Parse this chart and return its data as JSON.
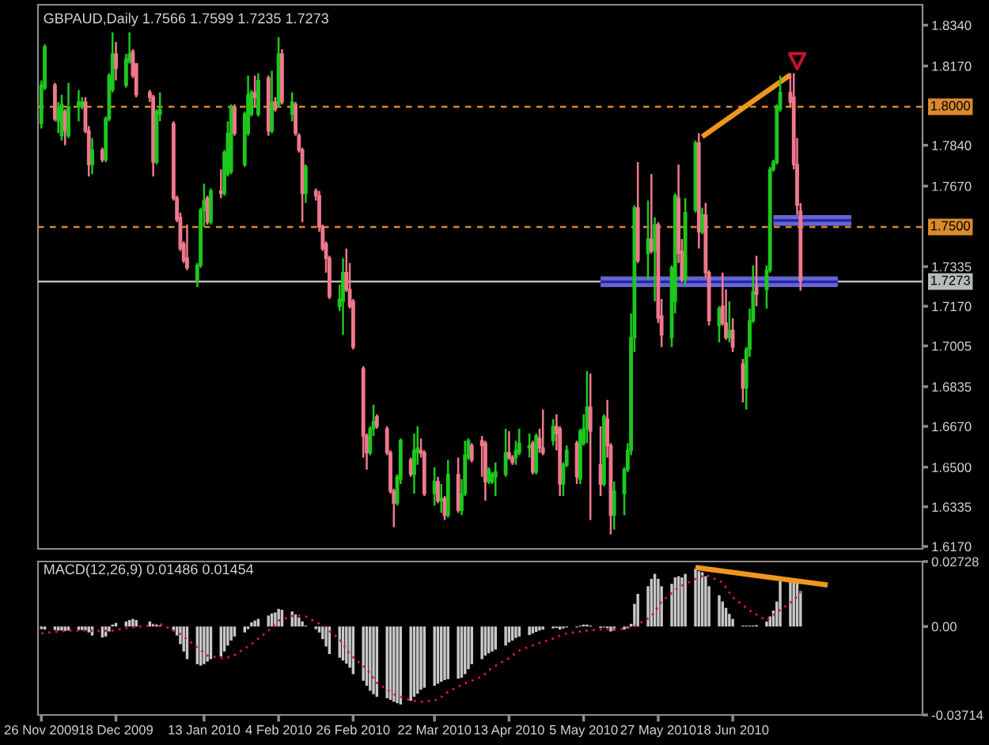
{
  "chart_data": [
    {
      "type": "candlestick",
      "title": "GBPAUD,Daily 1.7566 1.7599 1.7235 1.7273",
      "x": [
        "2009-11-26",
        "2009-11-27",
        "2009-11-30",
        "2009-12-01",
        "2009-12-02",
        "2009-12-03",
        "2009-12-04",
        "2009-12-07",
        "2009-12-08",
        "2009-12-09",
        "2009-12-10",
        "2009-12-11",
        "2009-12-14",
        "2009-12-15",
        "2009-12-16",
        "2009-12-17",
        "2009-12-18",
        "2009-12-21",
        "2009-12-22",
        "2009-12-23",
        "2009-12-24",
        "2009-12-28",
        "2009-12-29",
        "2009-12-30",
        "2009-12-31",
        "2010-01-04",
        "2010-01-05",
        "2010-01-06",
        "2010-01-07",
        "2010-01-08",
        "2010-01-11",
        "2010-01-12",
        "2010-01-13",
        "2010-01-14",
        "2010-01-15",
        "2010-01-18",
        "2010-01-19",
        "2010-01-20",
        "2010-01-21",
        "2010-01-22",
        "2010-01-25",
        "2010-01-26",
        "2010-01-27",
        "2010-01-28",
        "2010-01-29",
        "2010-02-01",
        "2010-02-02",
        "2010-02-03",
        "2010-02-04",
        "2010-02-05",
        "2010-02-08",
        "2010-02-09",
        "2010-02-10",
        "2010-02-11",
        "2010-02-12",
        "2010-02-15",
        "2010-02-16",
        "2010-02-17",
        "2010-02-18",
        "2010-02-19",
        "2010-02-22",
        "2010-02-23",
        "2010-02-24",
        "2010-02-25",
        "2010-02-26",
        "2010-03-01",
        "2010-03-02",
        "2010-03-03",
        "2010-03-04",
        "2010-03-05",
        "2010-03-08",
        "2010-03-09",
        "2010-03-10",
        "2010-03-11",
        "2010-03-12",
        "2010-03-15",
        "2010-03-16",
        "2010-03-17",
        "2010-03-18",
        "2010-03-19",
        "2010-03-22",
        "2010-03-23",
        "2010-03-24",
        "2010-03-25",
        "2010-03-26",
        "2010-03-29",
        "2010-03-30",
        "2010-03-31",
        "2010-04-01",
        "2010-04-02",
        "2010-04-05",
        "2010-04-06",
        "2010-04-07",
        "2010-04-08",
        "2010-04-09",
        "2010-04-12",
        "2010-04-13",
        "2010-04-14",
        "2010-04-15",
        "2010-04-16",
        "2010-04-19",
        "2010-04-20",
        "2010-04-21",
        "2010-04-22",
        "2010-04-23",
        "2010-04-26",
        "2010-04-27",
        "2010-04-28",
        "2010-04-29",
        "2010-04-30",
        "2010-05-03",
        "2010-05-04",
        "2010-05-05",
        "2010-05-06",
        "2010-05-07",
        "2010-05-10",
        "2010-05-11",
        "2010-05-12",
        "2010-05-13",
        "2010-05-14",
        "2010-05-17",
        "2010-05-18",
        "2010-05-19",
        "2010-05-20",
        "2010-05-21",
        "2010-05-24",
        "2010-05-25",
        "2010-05-26",
        "2010-05-27",
        "2010-05-28",
        "2010-05-31",
        "2010-06-01",
        "2010-06-02",
        "2010-06-03",
        "2010-06-04",
        "2010-06-07",
        "2010-06-08",
        "2010-06-09",
        "2010-06-10",
        "2010-06-11",
        "2010-06-14",
        "2010-06-15",
        "2010-06-16",
        "2010-06-17",
        "2010-06-18",
        "2010-06-21",
        "2010-06-22",
        "2010-06-23",
        "2010-06-24",
        "2010-06-25",
        "2010-06-28",
        "2010-06-29",
        "2010-06-30",
        "2010-07-01",
        "2010-07-02",
        "2010-07-05",
        "2010-07-06",
        "2010-07-07",
        "2010-07-08"
      ],
      "ohlc": [
        [
          1.793,
          1.811,
          1.791,
          1.809
        ],
        [
          1.808,
          1.826,
          1.807,
          1.825
        ],
        [
          1.809,
          1.81,
          1.794,
          1.795
        ],
        [
          1.794,
          1.802,
          1.789,
          1.8
        ],
        [
          1.788,
          1.805,
          1.786,
          1.801
        ],
        [
          1.798,
          1.799,
          1.784,
          1.79
        ],
        [
          1.788,
          1.81,
          1.787,
          1.8
        ],
        [
          1.8,
          1.807,
          1.794,
          1.802
        ],
        [
          1.8,
          1.804,
          1.799,
          1.802
        ],
        [
          1.802,
          1.804,
          1.789,
          1.79
        ],
        [
          1.79,
          1.792,
          1.771,
          1.776
        ],
        [
          1.776,
          1.787,
          1.772,
          1.782
        ],
        [
          1.782,
          1.783,
          1.777,
          1.778
        ],
        [
          1.778,
          1.796,
          1.777,
          1.795
        ],
        [
          1.795,
          1.814,
          1.794,
          1.813
        ],
        [
          1.807,
          1.831,
          1.806,
          1.822
        ],
        [
          1.822,
          1.827,
          1.811,
          1.816
        ],
        [
          1.809,
          1.822,
          1.808,
          1.82
        ],
        [
          1.819,
          1.831,
          1.818,
          1.822
        ],
        [
          1.823,
          1.824,
          1.812,
          1.813
        ],
        [
          1.818,
          1.818,
          1.804,
          1.805
        ],
        [
          1.806,
          1.807,
          1.802,
          1.804
        ],
        [
          1.804,
          1.805,
          1.771,
          1.777
        ],
        [
          1.777,
          1.799,
          1.776,
          1.798
        ],
        [
          1.797,
          1.806,
          1.794,
          1.799
        ],
        [
          1.793,
          1.794,
          1.761,
          1.762
        ],
        [
          1.762,
          1.763,
          1.752,
          1.753
        ],
        [
          1.754,
          1.756,
          1.74,
          1.741
        ],
        [
          1.743,
          1.744,
          1.735,
          1.736
        ],
        [
          1.737,
          1.751,
          1.732,
          1.733
        ],
        [
          1.728,
          1.735,
          1.725,
          1.734
        ],
        [
          1.734,
          1.758,
          1.733,
          1.757
        ],
        [
          1.757,
          1.768,
          1.75,
          1.761
        ],
        [
          1.762,
          1.763,
          1.751,
          1.752
        ],
        [
          1.752,
          1.766,
          1.751,
          1.765
        ],
        [
          1.765,
          1.774,
          1.762,
          1.764
        ],
        [
          1.764,
          1.782,
          1.763,
          1.781
        ],
        [
          1.772,
          1.794,
          1.771,
          1.789
        ],
        [
          1.773,
          1.801,
          1.772,
          1.8
        ],
        [
          1.8,
          1.801,
          1.788,
          1.789
        ],
        [
          1.776,
          1.798,
          1.775,
          1.797
        ],
        [
          1.789,
          1.813,
          1.788,
          1.805
        ],
        [
          1.797,
          1.807,
          1.796,
          1.806
        ],
        [
          1.806,
          1.813,
          1.8,
          1.804
        ],
        [
          1.797,
          1.814,
          1.796,
          1.811
        ],
        [
          1.812,
          1.813,
          1.788,
          1.79
        ],
        [
          1.79,
          1.815,
          1.789,
          1.802
        ],
        [
          1.802,
          1.804,
          1.798,
          1.799
        ],
        [
          1.801,
          1.829,
          1.8,
          1.822
        ],
        [
          1.822,
          1.824,
          1.801,
          1.802
        ],
        [
          1.797,
          1.806,
          1.794,
          1.802
        ],
        [
          1.801,
          1.802,
          1.788,
          1.789
        ],
        [
          1.788,
          1.789,
          1.781,
          1.782
        ],
        [
          1.782,
          1.783,
          1.752,
          1.764
        ],
        [
          1.764,
          1.776,
          1.76,
          1.775
        ],
        [
          1.765,
          1.766,
          1.761,
          1.763
        ],
        [
          1.763,
          1.765,
          1.748,
          1.75
        ],
        [
          1.75,
          1.751,
          1.74,
          1.741
        ],
        [
          1.743,
          1.744,
          1.731,
          1.737
        ],
        [
          1.737,
          1.738,
          1.72,
          1.721
        ],
        [
          1.717,
          1.726,
          1.715,
          1.72
        ],
        [
          1.719,
          1.737,
          1.705,
          1.731
        ],
        [
          1.731,
          1.741,
          1.723,
          1.724
        ],
        [
          1.724,
          1.735,
          1.716,
          1.717
        ],
        [
          1.719,
          1.72,
          1.699,
          1.7
        ],
        [
          1.691,
          1.692,
          1.654,
          1.663
        ],
        [
          1.663,
          1.664,
          1.649,
          1.656
        ],
        [
          1.656,
          1.667,
          1.655,
          1.666
        ],
        [
          1.666,
          1.676,
          1.663,
          1.669
        ],
        [
          1.671,
          1.672,
          1.666,
          1.667
        ],
        [
          1.666,
          1.667,
          1.655,
          1.656
        ],
        [
          1.656,
          1.657,
          1.639,
          1.64
        ],
        [
          1.64,
          1.641,
          1.625,
          1.635
        ],
        [
          1.635,
          1.647,
          1.634,
          1.646
        ],
        [
          1.645,
          1.662,
          1.643,
          1.661
        ],
        [
          1.653,
          1.654,
          1.646,
          1.647
        ],
        [
          1.647,
          1.664,
          1.639,
          1.657
        ],
        [
          1.656,
          1.667,
          1.651,
          1.658
        ],
        [
          1.657,
          1.662,
          1.654,
          1.656
        ],
        [
          1.656,
          1.657,
          1.638,
          1.639
        ],
        [
          1.639,
          1.65,
          1.634,
          1.644
        ],
        [
          1.644,
          1.646,
          1.635,
          1.636
        ],
        [
          1.636,
          1.643,
          1.631,
          1.637
        ],
        [
          1.637,
          1.638,
          1.628,
          1.63
        ],
        [
          1.63,
          1.653,
          1.629,
          1.647
        ],
        [
          1.647,
          1.654,
          1.631,
          1.632
        ],
        [
          1.632,
          1.645,
          1.63,
          1.639
        ],
        [
          1.639,
          1.661,
          1.638,
          1.655
        ],
        [
          1.654,
          1.662,
          1.653,
          1.661
        ],
        [
          1.659,
          1.66,
          1.652,
          1.653
        ],
        [
          1.661,
          1.663,
          1.646,
          1.659
        ],
        [
          1.66,
          1.661,
          1.636,
          1.644
        ],
        [
          1.644,
          1.65,
          1.643,
          1.649
        ],
        [
          1.644,
          1.648,
          1.643,
          1.647
        ],
        [
          1.646,
          1.652,
          1.638,
          1.648
        ],
        [
          1.647,
          1.666,
          1.646,
          1.656
        ],
        [
          1.656,
          1.665,
          1.653,
          1.654
        ],
        [
          1.654,
          1.655,
          1.651,
          1.652
        ],
        [
          1.654,
          1.661,
          1.651,
          1.657
        ],
        [
          1.656,
          1.666,
          1.655,
          1.66
        ],
        [
          1.658,
          1.664,
          1.654,
          1.659
        ],
        [
          1.66,
          1.661,
          1.647,
          1.648
        ],
        [
          1.648,
          1.664,
          1.647,
          1.663
        ],
        [
          1.662,
          1.666,
          1.656,
          1.658
        ],
        [
          1.658,
          1.674,
          1.655,
          1.656
        ],
        [
          1.661,
          1.67,
          1.659,
          1.667
        ],
        [
          1.667,
          1.672,
          1.657,
          1.664
        ],
        [
          1.666,
          1.667,
          1.638,
          1.643
        ],
        [
          1.643,
          1.652,
          1.638,
          1.651
        ],
        [
          1.651,
          1.659,
          1.65,
          1.657
        ],
        [
          1.66,
          1.661,
          1.643,
          1.646
        ],
        [
          1.645,
          1.666,
          1.643,
          1.665
        ],
        [
          1.66,
          1.672,
          1.659,
          1.666
        ],
        [
          1.666,
          1.69,
          1.66,
          1.675
        ],
        [
          1.675,
          1.689,
          1.628,
          1.665
        ],
        [
          1.651,
          1.667,
          1.638,
          1.643
        ],
        [
          1.643,
          1.672,
          1.642,
          1.671
        ],
        [
          1.67,
          1.678,
          1.654,
          1.659
        ],
        [
          1.659,
          1.66,
          1.622,
          1.63
        ],
        [
          1.63,
          1.644,
          1.624,
          1.64
        ],
        [
          1.639,
          1.65,
          1.63,
          1.649
        ],
        [
          1.649,
          1.66,
          1.648,
          1.657
        ],
        [
          1.657,
          1.714,
          1.655,
          1.704
        ],
        [
          1.704,
          1.759,
          1.698,
          1.758
        ],
        [
          1.758,
          1.777,
          1.735,
          1.736
        ],
        [
          1.739,
          1.761,
          1.728,
          1.745
        ],
        [
          1.745,
          1.772,
          1.739,
          1.74
        ],
        [
          1.74,
          1.754,
          1.719,
          1.751
        ],
        [
          1.751,
          1.752,
          1.71,
          1.712
        ],
        [
          1.713,
          1.72,
          1.7,
          1.705
        ],
        [
          1.704,
          1.734,
          1.7,
          1.733
        ],
        [
          1.719,
          1.764,
          1.714,
          1.763
        ],
        [
          1.762,
          1.776,
          1.735,
          1.739
        ],
        [
          1.74,
          1.745,
          1.727,
          1.728
        ],
        [
          1.728,
          1.762,
          1.726,
          1.756
        ],
        [
          1.757,
          1.786,
          1.756,
          1.785
        ],
        [
          1.785,
          1.789,
          1.741,
          1.748
        ],
        [
          1.748,
          1.758,
          1.747,
          1.755
        ],
        [
          1.755,
          1.76,
          1.729,
          1.731
        ],
        [
          1.731,
          1.732,
          1.709,
          1.711
        ],
        [
          1.709,
          1.717,
          1.702,
          1.716
        ],
        [
          1.717,
          1.731,
          1.709,
          1.71
        ],
        [
          1.71,
          1.724,
          1.703,
          1.704
        ],
        [
          1.704,
          1.719,
          1.702,
          1.707
        ],
        [
          1.707,
          1.712,
          1.698,
          1.7
        ],
        [
          1.693,
          1.695,
          1.677,
          1.683
        ],
        [
          1.683,
          1.7,
          1.674,
          1.699
        ],
        [
          1.699,
          1.716,
          1.696,
          1.711
        ],
        [
          1.711,
          1.734,
          1.71,
          1.723
        ],
        [
          1.725,
          1.738,
          1.717,
          1.722
        ],
        [
          1.724,
          1.734,
          1.716,
          1.732
        ],
        [
          1.732,
          1.775,
          1.731,
          1.774
        ],
        [
          1.774,
          1.778,
          1.773,
          1.777
        ],
        [
          1.777,
          1.801,
          1.776,
          1.8
        ],
        [
          1.799,
          1.813,
          1.798,
          1.806
        ],
        [
          1.806,
          1.814,
          1.8,
          1.802
        ],
        [
          1.804,
          1.814,
          1.774,
          1.776
        ],
        [
          1.776,
          1.787,
          1.755,
          1.759
        ],
        [
          1.7566,
          1.7599,
          1.7235,
          1.7273
        ]
      ],
      "colors": [
        "#1ec81e",
        "#1ec81e",
        "#f0788c",
        "#1ec81e",
        "#1ec81e",
        "#f0788c",
        "#1ec81e",
        "#1ec81e",
        "#1ec81e",
        "#f0788c",
        "#f0788c",
        "#1ec81e",
        "#f0788c",
        "#1ec81e",
        "#1ec81e",
        "#1ec81e",
        "#f0788c",
        "#1ec81e",
        "#1ec81e",
        "#f0788c",
        "#f0788c",
        "#f0788c",
        "#f0788c",
        "#1ec81e",
        "#1ec81e",
        "#f0788c",
        "#f0788c",
        "#f0788c",
        "#f0788c",
        "#f0788c",
        "#1ec81e",
        "#1ec81e",
        "#1ec81e",
        "#f0788c",
        "#1ec81e",
        "#f0788c",
        "#1ec81e",
        "#1ec81e",
        "#1ec81e",
        "#f0788c",
        "#1ec81e",
        "#1ec81e",
        "#1ec81e",
        "#f0788c",
        "#1ec81e",
        "#f0788c",
        "#1ec81e",
        "#f0788c",
        "#1ec81e",
        "#f0788c",
        "#1ec81e",
        "#f0788c",
        "#f0788c",
        "#f0788c",
        "#1ec81e",
        "#f0788c",
        "#f0788c",
        "#f0788c",
        "#f0788c",
        "#f0788c",
        "#1ec81e",
        "#1ec81e",
        "#f0788c",
        "#f0788c",
        "#f0788c",
        "#f0788c",
        "#f0788c",
        "#1ec81e",
        "#1ec81e",
        "#f0788c",
        "#f0788c",
        "#f0788c",
        "#f0788c",
        "#1ec81e",
        "#1ec81e",
        "#f0788c",
        "#1ec81e",
        "#1ec81e",
        "#f0788c",
        "#f0788c",
        "#1ec81e",
        "#f0788c",
        "#1ec81e",
        "#f0788c",
        "#1ec81e",
        "#f0788c",
        "#1ec81e",
        "#1ec81e",
        "#1ec81e",
        "#f0788c",
        "#f0788c",
        "#f0788c",
        "#1ec81e",
        "#1ec81e",
        "#1ec81e",
        "#1ec81e",
        "#f0788c",
        "#f0788c",
        "#1ec81e",
        "#1ec81e",
        "#1ec81e",
        "#f0788c",
        "#1ec81e",
        "#f0788c",
        "#f0788c",
        "#1ec81e",
        "#f0788c",
        "#f0788c",
        "#1ec81e",
        "#1ec81e",
        "#f0788c",
        "#1ec81e",
        "#1ec81e",
        "#1ec81e",
        "#f0788c",
        "#f0788c",
        "#1ec81e",
        "#f0788c",
        "#f0788c",
        "#1ec81e",
        "#1ec81e",
        "#1ec81e",
        "#1ec81e",
        "#1ec81e",
        "#f0788c",
        "#1ec81e",
        "#f0788c",
        "#1ec81e",
        "#f0788c",
        "#f0788c",
        "#1ec81e",
        "#1ec81e",
        "#f0788c",
        "#f0788c",
        "#1ec81e",
        "#1ec81e",
        "#f0788c",
        "#1ec81e",
        "#f0788c",
        "#f0788c",
        "#1ec81e",
        "#f0788c",
        "#f0788c",
        "#1ec81e",
        "#f0788c",
        "#f0788c",
        "#1ec81e",
        "#1ec81e",
        "#1ec81e",
        "#f0788c",
        "#1ec81e",
        "#1ec81e",
        "#1ec81e",
        "#1ec81e",
        "#1ec81e",
        "#f0788c",
        "#f0788c",
        "#f0788c",
        "#f0788c"
      ],
      "xlim": [
        "2009-11-25",
        "2010-08-13"
      ],
      "ylim": [
        1.616,
        1.8425
      ],
      "yticks": [
        {
          "value": 1.834,
          "label": "1.8340"
        },
        {
          "value": 1.817,
          "label": "1.8170"
        },
        {
          "value": 1.784,
          "label": "1.7840"
        },
        {
          "value": 1.767,
          "label": "1.7670"
        },
        {
          "value": 1.7335,
          "label": "1.7335"
        },
        {
          "value": 1.717,
          "label": "1.7170"
        },
        {
          "value": 1.7005,
          "label": "1.7005"
        },
        {
          "value": 1.6835,
          "label": "1.6835"
        },
        {
          "value": 1.667,
          "label": "1.6670"
        },
        {
          "value": 1.65,
          "label": "1.6500"
        },
        {
          "value": 1.6335,
          "label": "1.6335"
        },
        {
          "value": 1.617,
          "label": "1.6170"
        }
      ],
      "tick_labels": "y",
      "ref_lines": [
        {
          "axis": "y",
          "value": 1.8,
          "label": "1.8000",
          "color": "#d98a2a",
          "line_style": "dashed"
        },
        {
          "axis": "y",
          "value": 1.75,
          "label": "1.7500",
          "color": "#d98a2a",
          "line_style": "dashed"
        },
        {
          "axis": "y",
          "value": 1.7273,
          "label": "1.7273",
          "color": "#b4bcbc",
          "line_style": "solid"
        }
      ],
      "series": [
        {
          "type": "line",
          "color": "#2424b4",
          "x": [
            "2010-05-10",
            "2010-07-19"
          ],
          "values": [
            1.7272,
            1.7272
          ],
          "lower": [
            1.725,
            1.725
          ],
          "upper": [
            1.7294,
            1.7294
          ]
        },
        {
          "type": "line",
          "color": "#2424b4",
          "x": [
            "2010-06-30",
            "2010-07-23"
          ],
          "values": [
            1.7527,
            1.7527
          ],
          "lower": [
            1.7505,
            1.7505
          ],
          "upper": [
            1.7549,
            1.7549
          ]
        },
        {
          "type": "line",
          "color": "#f0961e",
          "line_style": "solid",
          "x": [
            "2010-06-09",
            "2010-07-05"
          ],
          "values": [
            1.7876,
            1.8133
          ]
        },
        {
          "type": "scatter",
          "color": "#c8142d",
          "marker": "triangle",
          "x": [
            "2010-07-07"
          ],
          "values": [
            1.819
          ]
        }
      ]
    },
    {
      "type": "bar",
      "title": "MACD(12,26,9) 0.01486 0.01454",
      "x": [
        "2009-11-26",
        "2009-11-27",
        "2009-11-30",
        "2009-12-01",
        "2009-12-02",
        "2009-12-03",
        "2009-12-04",
        "2009-12-07",
        "2009-12-08",
        "2009-12-09",
        "2009-12-10",
        "2009-12-11",
        "2009-12-14",
        "2009-12-15",
        "2009-12-16",
        "2009-12-17",
        "2009-12-18",
        "2009-12-21",
        "2009-12-22",
        "2009-12-23",
        "2009-12-24",
        "2009-12-28",
        "2009-12-29",
        "2009-12-30",
        "2009-12-31",
        "2010-01-04",
        "2010-01-05",
        "2010-01-06",
        "2010-01-07",
        "2010-01-08",
        "2010-01-11",
        "2010-01-12",
        "2010-01-13",
        "2010-01-14",
        "2010-01-15",
        "2010-01-18",
        "2010-01-19",
        "2010-01-20",
        "2010-01-21",
        "2010-01-22",
        "2010-01-25",
        "2010-01-26",
        "2010-01-27",
        "2010-01-28",
        "2010-01-29",
        "2010-02-01",
        "2010-02-02",
        "2010-02-03",
        "2010-02-04",
        "2010-02-05",
        "2010-02-08",
        "2010-02-09",
        "2010-02-10",
        "2010-02-11",
        "2010-02-12",
        "2010-02-15",
        "2010-02-16",
        "2010-02-17",
        "2010-02-18",
        "2010-02-19",
        "2010-02-22",
        "2010-02-23",
        "2010-02-24",
        "2010-02-25",
        "2010-02-26",
        "2010-03-01",
        "2010-03-02",
        "2010-03-03",
        "2010-03-04",
        "2010-03-05",
        "2010-03-08",
        "2010-03-09",
        "2010-03-10",
        "2010-03-11",
        "2010-03-12",
        "2010-03-15",
        "2010-03-16",
        "2010-03-17",
        "2010-03-18",
        "2010-03-19",
        "2010-03-22",
        "2010-03-23",
        "2010-03-24",
        "2010-03-25",
        "2010-03-26",
        "2010-03-29",
        "2010-03-30",
        "2010-03-31",
        "2010-04-01",
        "2010-04-02",
        "2010-04-05",
        "2010-04-06",
        "2010-04-07",
        "2010-04-08",
        "2010-04-09",
        "2010-04-12",
        "2010-04-13",
        "2010-04-14",
        "2010-04-15",
        "2010-04-16",
        "2010-04-19",
        "2010-04-20",
        "2010-04-21",
        "2010-04-22",
        "2010-04-23",
        "2010-04-26",
        "2010-04-27",
        "2010-04-28",
        "2010-04-29",
        "2010-04-30",
        "2010-05-03",
        "2010-05-04",
        "2010-05-05",
        "2010-05-06",
        "2010-05-07",
        "2010-05-10",
        "2010-05-11",
        "2010-05-12",
        "2010-05-13",
        "2010-05-14",
        "2010-05-17",
        "2010-05-18",
        "2010-05-19",
        "2010-05-20",
        "2010-05-21",
        "2010-05-24",
        "2010-05-25",
        "2010-05-26",
        "2010-05-27",
        "2010-05-28",
        "2010-05-31",
        "2010-06-01",
        "2010-06-02",
        "2010-06-03",
        "2010-06-04",
        "2010-06-07",
        "2010-06-08",
        "2010-06-09",
        "2010-06-10",
        "2010-06-11",
        "2010-06-14",
        "2010-06-15",
        "2010-06-16",
        "2010-06-17",
        "2010-06-18",
        "2010-06-21",
        "2010-06-22",
        "2010-06-23",
        "2010-06-24",
        "2010-06-25",
        "2010-06-28",
        "2010-06-29",
        "2010-06-30",
        "2010-07-01",
        "2010-07-02",
        "2010-07-05",
        "2010-07-06",
        "2010-07-07",
        "2010-07-08"
      ],
      "xlim": [
        "2009-11-25",
        "2010-08-13"
      ],
      "xticks": [
        {
          "value": "2009-11-26",
          "label": "26 Nov 2009"
        },
        {
          "value": "2009-12-18",
          "label": "18 Dec 2009"
        },
        {
          "value": "2010-01-13",
          "label": "13 Jan 2010"
        },
        {
          "value": "2010-02-04",
          "label": "4 Feb 2010"
        },
        {
          "value": "2010-02-26",
          "label": "26 Feb 2010"
        },
        {
          "value": "2010-03-22",
          "label": "22 Mar 2010"
        },
        {
          "value": "2010-04-13",
          "label": "13 Apr 2010"
        },
        {
          "value": "2010-05-05",
          "label": "5 May 2010"
        },
        {
          "value": "2010-05-27",
          "label": "27 May 2010"
        },
        {
          "value": "2010-06-18",
          "label": "18 Jun 2010"
        }
      ],
      "ylim": [
        -0.03714,
        0.02728
      ],
      "yticks": [
        0.02728,
        {
          "value": 0,
          "label": "0.00"
        },
        -0.03714
      ],
      "series": [
        {
          "color": "#c8c8c8",
          "values": [
            -0.0011,
            -0.0013,
            -0.0015,
            -0.0017,
            -0.0017,
            -0.0019,
            -0.0017,
            -0.0015,
            -0.0015,
            -0.0017,
            -0.0025,
            -0.0038,
            -0.0046,
            -0.0042,
            -0.0021,
            0.0008,
            0.0015,
            0.0021,
            0.0027,
            0.0032,
            0.0027,
            0.0021,
            0.0011,
            0.0008,
            0.0004,
            -0.0017,
            -0.0038,
            -0.0074,
            -0.0105,
            -0.0137,
            -0.0158,
            -0.0164,
            -0.0158,
            -0.0147,
            -0.0137,
            -0.0126,
            -0.0105,
            -0.008,
            -0.0059,
            -0.0042,
            -0.0025,
            -0.0011,
            0.0017,
            0.0025,
            0.0032,
            0.0046,
            0.0055,
            0.0059,
            0.0074,
            0.007,
            0.0063,
            0.0051,
            0.0038,
            0.0021,
            0.0004,
            -0.0011,
            -0.0025,
            -0.0053,
            -0.0084,
            -0.0116,
            -0.0131,
            -0.0143,
            -0.0156,
            -0.0173,
            -0.02,
            -0.0228,
            -0.0249,
            -0.027,
            -0.0284,
            -0.0295,
            -0.0301,
            -0.0308,
            -0.0316,
            -0.0322,
            -0.0327,
            -0.0312,
            -0.0295,
            -0.0282,
            -0.0265,
            -0.0257,
            -0.0249,
            -0.024,
            -0.0232,
            -0.0225,
            -0.0221,
            -0.0219,
            -0.0215,
            -0.02,
            -0.0179,
            -0.0158,
            -0.0137,
            -0.0122,
            -0.0112,
            -0.0105,
            -0.0097,
            -0.008,
            -0.0067,
            -0.0059,
            -0.0048,
            -0.0042,
            -0.0036,
            -0.0029,
            -0.0023,
            -0.0017,
            -0.0013,
            -0.0008,
            -0.0006,
            -0.0013,
            -0.0008,
            -0.0004,
            -0.0004,
            0.0004,
            0.0008,
            0.0008,
            0.0004,
            -0.0006,
            -0.0004,
            -0.0006,
            -0.0021,
            -0.0017,
            -0.0013,
            -0.0008,
            0.0011,
            0.0095,
            0.0137,
            0.0169,
            0.02,
            0.0221,
            0.02,
            0.0169,
            0.0179,
            0.0206,
            0.0211,
            0.0206,
            0.0221,
            0.0242,
            0.0232,
            0.0228,
            0.0211,
            0.0169,
            0.0131,
            0.0105,
            0.0078,
            0.0053,
            0.0032,
            0.0004,
            0.0004,
            0.0004,
            0.0004,
            0.0006,
            0.0021,
            0.0042,
            0.0067,
            0.0105,
            0.019,
            0.02,
            0.02,
            0.019,
            0.01486
          ]
        },
        {
          "type": "line",
          "color": "#dc143c",
          "line_style": "dotted",
          "x": [
            "2009-11-26",
            "2009-12-01",
            "2009-12-04",
            "2009-12-09",
            "2009-12-14",
            "2009-12-17",
            "2009-12-22",
            "2009-12-28",
            "2009-12-31",
            "2010-01-06",
            "2010-01-11",
            "2010-01-14",
            "2010-01-19",
            "2010-01-22",
            "2010-01-27",
            "2010-02-01",
            "2010-02-04",
            "2010-02-09",
            "2010-02-12",
            "2010-02-17",
            "2010-02-22",
            "2010-02-25",
            "2010-03-02",
            "2010-03-05",
            "2010-03-10",
            "2010-03-15",
            "2010-03-18",
            "2010-03-23",
            "2010-03-26",
            "2010-03-31",
            "2010-04-05",
            "2010-04-08",
            "2010-04-13",
            "2010-04-16",
            "2010-04-21",
            "2010-04-26",
            "2010-04-29",
            "2010-05-04",
            "2010-05-07",
            "2010-05-12",
            "2010-05-17",
            "2010-05-20",
            "2010-05-25",
            "2010-05-28",
            "2010-06-02",
            "2010-06-07",
            "2010-06-10",
            "2010-06-15",
            "2010-06-18",
            "2010-06-23",
            "2010-06-28",
            "2010-07-01",
            "2010-07-06",
            "2010-07-08"
          ],
          "values": [
            -0.0029,
            -0.0021,
            -0.0017,
            -0.0017,
            -0.0019,
            -0.0017,
            -0.0004,
            0.0004,
            0.0011,
            -0.0032,
            -0.0088,
            -0.0122,
            -0.0135,
            -0.012,
            -0.0074,
            -0.0017,
            0.0025,
            0.0048,
            0.0042,
            0.0004,
            -0.0053,
            -0.0116,
            -0.0179,
            -0.0236,
            -0.0284,
            -0.031,
            -0.0316,
            -0.0308,
            -0.0274,
            -0.0238,
            -0.0211,
            -0.0173,
            -0.0133,
            -0.0101,
            -0.0074,
            -0.0051,
            -0.0032,
            -0.0021,
            -0.0015,
            -0.0011,
            -0.0011,
            0,
            0.0042,
            0.0105,
            0.0164,
            0.02,
            0.0217,
            0.0185,
            0.0122,
            0.0067,
            0.0025,
            0.0059,
            0.011,
            0.01454
          ]
        },
        {
          "type": "line",
          "color": "#f0961e",
          "line_style": "solid",
          "x": [
            "2010-06-07",
            "2010-07-16"
          ],
          "values": [
            0.0248,
            0.0174
          ]
        }
      ]
    }
  ]
}
